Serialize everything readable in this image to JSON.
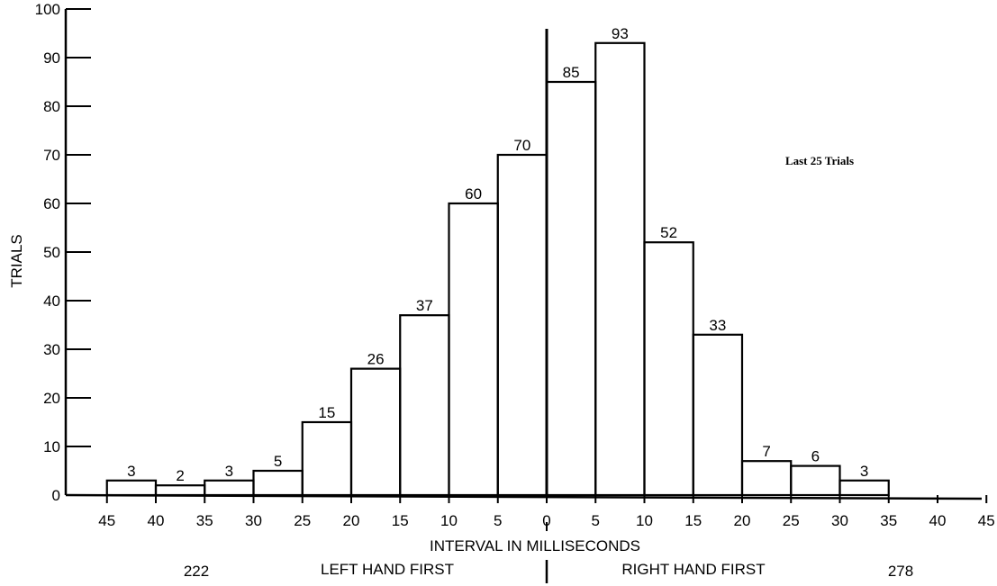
{
  "chart_data": {
    "type": "bar",
    "title": "",
    "xlabel": "INTERVAL IN MILLISECONDS",
    "ylabel": "TRIALS",
    "ylim": [
      0,
      100
    ],
    "y_ticks": [
      "0",
      "10",
      "20",
      "30",
      "40",
      "50",
      "60",
      "70",
      "80",
      "90",
      "100"
    ],
    "x_tick_labels": [
      "45",
      "40",
      "35",
      "30",
      "25",
      "20",
      "15",
      "10",
      "5",
      "0",
      "5",
      "10",
      "15",
      "20",
      "25",
      "30",
      "35",
      "40",
      "45"
    ],
    "bins": [
      {
        "from": -45,
        "to": -40,
        "value": 3
      },
      {
        "from": -40,
        "to": -35,
        "value": 2
      },
      {
        "from": -35,
        "to": -30,
        "value": 3
      },
      {
        "from": -30,
        "to": -25,
        "value": 5
      },
      {
        "from": -25,
        "to": -20,
        "value": 15
      },
      {
        "from": -20,
        "to": -15,
        "value": 26
      },
      {
        "from": -15,
        "to": -10,
        "value": 37
      },
      {
        "from": -10,
        "to": -5,
        "value": 60
      },
      {
        "from": -5,
        "to": 0,
        "value": 70
      },
      {
        "from": 0,
        "to": 5,
        "value": 85
      },
      {
        "from": 5,
        "to": 10,
        "value": 93
      },
      {
        "from": 10,
        "to": 15,
        "value": 52
      },
      {
        "from": 15,
        "to": 20,
        "value": 33
      },
      {
        "from": 20,
        "to": 25,
        "value": 7
      },
      {
        "from": 25,
        "to": 30,
        "value": 6
      },
      {
        "from": 30,
        "to": 35,
        "value": 3
      }
    ],
    "annotation": "Last 25 Trials",
    "left_side_label": "LEFT HAND FIRST",
    "left_side_total": "222",
    "right_side_label": "RIGHT HAND FIRST",
    "right_side_total": "278",
    "grid": false,
    "colors": {
      "ink": "#000000",
      "background": "#ffffff"
    }
  }
}
